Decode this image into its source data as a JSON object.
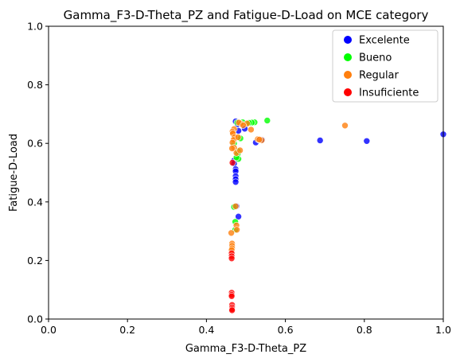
{
  "chart_data": {
    "type": "scatter",
    "title": "Gamma_F3-D-Theta_PZ and Fatigue-D-Load on MCE category",
    "xlabel": "Gamma_F3-D-Theta_PZ",
    "ylabel": "Fatigue-D-Load",
    "xlim": [
      0.0,
      1.0
    ],
    "ylim": [
      0.0,
      1.0
    ],
    "xticks": [
      "0.0",
      "0.2",
      "0.4",
      "0.6",
      "0.8",
      "1.0"
    ],
    "yticks": [
      "0.0",
      "0.2",
      "0.4",
      "0.6",
      "0.8",
      "1.0"
    ],
    "grid": false,
    "legend_position": "top-right",
    "series": [
      {
        "name": "Excelente",
        "color": "#0000ff",
        "points": [
          [
            0.474,
            0.675
          ],
          [
            0.479,
            0.665
          ],
          [
            0.481,
            0.643
          ],
          [
            0.47,
            0.541
          ],
          [
            0.47,
            0.531
          ],
          [
            0.474,
            0.512
          ],
          [
            0.474,
            0.505
          ],
          [
            0.474,
            0.488
          ],
          [
            0.474,
            0.478
          ],
          [
            0.474,
            0.468
          ],
          [
            0.476,
            0.385
          ],
          [
            0.481,
            0.35
          ],
          [
            0.497,
            0.65
          ],
          [
            0.525,
            0.603
          ],
          [
            0.541,
            0.612
          ],
          [
            0.533,
            0.612
          ],
          [
            0.688,
            0.61
          ],
          [
            0.806,
            0.608
          ],
          [
            1.0,
            0.631
          ]
        ]
      },
      {
        "name": "Bueno",
        "color": "#00ff00",
        "points": [
          [
            0.554,
            0.678
          ],
          [
            0.522,
            0.672
          ],
          [
            0.515,
            0.671
          ],
          [
            0.508,
            0.67
          ],
          [
            0.492,
            0.672
          ],
          [
            0.478,
            0.671
          ],
          [
            0.486,
            0.617
          ],
          [
            0.48,
            0.573
          ],
          [
            0.479,
            0.563
          ],
          [
            0.481,
            0.547
          ],
          [
            0.476,
            0.552
          ],
          [
            0.47,
            0.6
          ],
          [
            0.47,
            0.383
          ],
          [
            0.473,
            0.332
          ],
          [
            0.473,
            0.305
          ]
        ]
      },
      {
        "name": "Regular",
        "color": "#ff7f0e",
        "points": [
          [
            0.751,
            0.661
          ],
          [
            0.503,
            0.668
          ],
          [
            0.487,
            0.668
          ],
          [
            0.482,
            0.671
          ],
          [
            0.47,
            0.649
          ],
          [
            0.466,
            0.64
          ],
          [
            0.467,
            0.634
          ],
          [
            0.471,
            0.621
          ],
          [
            0.469,
            0.612
          ],
          [
            0.466,
            0.603
          ],
          [
            0.48,
            0.621
          ],
          [
            0.493,
            0.662
          ],
          [
            0.513,
            0.647
          ],
          [
            0.53,
            0.614
          ],
          [
            0.54,
            0.611
          ],
          [
            0.534,
            0.613
          ],
          [
            0.47,
            0.585
          ],
          [
            0.465,
            0.583
          ],
          [
            0.476,
            0.567
          ],
          [
            0.485,
            0.576
          ],
          [
            0.474,
            0.385
          ],
          [
            0.476,
            0.32
          ],
          [
            0.477,
            0.305
          ],
          [
            0.463,
            0.294
          ],
          [
            0.465,
            0.258
          ],
          [
            0.465,
            0.25
          ],
          [
            0.465,
            0.242
          ],
          [
            0.464,
            0.236
          ]
        ]
      },
      {
        "name": "Insuficiente",
        "color": "#ff0000",
        "points": [
          [
            0.466,
            0.534
          ],
          [
            0.464,
            0.225
          ],
          [
            0.464,
            0.215
          ],
          [
            0.464,
            0.207
          ],
          [
            0.464,
            0.09
          ],
          [
            0.464,
            0.083
          ],
          [
            0.464,
            0.078
          ],
          [
            0.465,
            0.048
          ],
          [
            0.465,
            0.04
          ],
          [
            0.465,
            0.034
          ],
          [
            0.465,
            0.03
          ]
        ]
      }
    ]
  }
}
